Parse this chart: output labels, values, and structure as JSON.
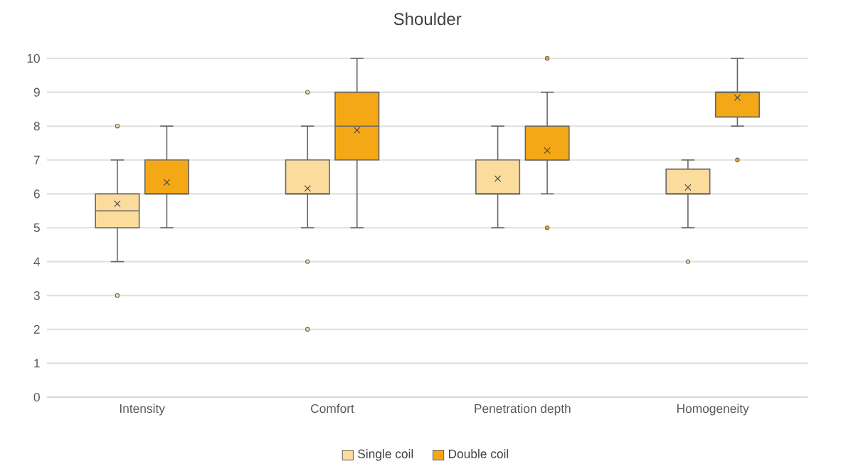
{
  "chart_data": {
    "type": "box",
    "title": "Shoulder",
    "categories": [
      "Intensity",
      "Comfort",
      "Penetration depth",
      "Homogeneity"
    ],
    "ylim": [
      0,
      10
    ],
    "yticks": [
      0,
      1,
      2,
      3,
      4,
      5,
      6,
      7,
      8,
      9,
      10
    ],
    "grid": "y",
    "legend": "bottom",
    "series": [
      {
        "name": "Single coil",
        "color": "#fbdc9c",
        "boxes": [
          {
            "low": 4,
            "q1": 5,
            "median": 5.5,
            "q3": 6,
            "high": 7,
            "mean": 5.71,
            "outliers": [
              3,
              8
            ]
          },
          {
            "low": 5,
            "q1": 6,
            "median": 6,
            "q3": 7,
            "high": 8,
            "mean": 6.16,
            "outliers": [
              9,
              4,
              2
            ]
          },
          {
            "low": 5,
            "q1": 6,
            "median": 6,
            "q3": 7,
            "high": 8,
            "mean": 6.45
          },
          {
            "low": 5,
            "q1": 6,
            "median": 6,
            "q3": 6.73,
            "high": 7,
            "mean": 6.19,
            "outliers": [
              4
            ]
          }
        ]
      },
      {
        "name": "Double coil",
        "color": "#f5a816",
        "boxes": [
          {
            "low": 5,
            "q1": 6,
            "median": 6,
            "q3": 7,
            "high": 8,
            "mean": 6.34
          },
          {
            "low": 5,
            "q1": 7,
            "median": 8,
            "q3": 9,
            "high": 10,
            "mean": 7.88
          },
          {
            "low": 6,
            "q1": 7,
            "median": 7,
            "q3": 8,
            "high": 9,
            "mean": 7.28,
            "outliers": [
              10,
              5
            ]
          },
          {
            "low": 8,
            "q1": 8.27,
            "median": 9,
            "q3": 9,
            "high": 10,
            "mean": 8.84,
            "outliers": [
              7
            ]
          }
        ]
      }
    ]
  }
}
